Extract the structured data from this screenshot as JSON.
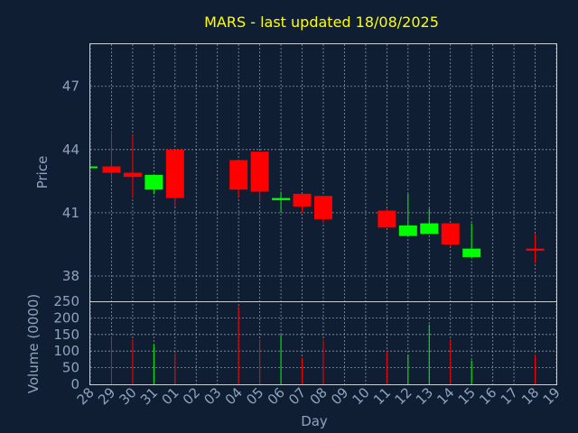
{
  "chart_data": {
    "type": "candlestick",
    "title": "MARS - last updated 18/08/2025",
    "xlabel": "Day",
    "colors": {
      "up": "#00ff00",
      "down": "#ff0000",
      "background": "#0f1e32",
      "title": "#ffff00",
      "axis_text": "#8fa3bf"
    },
    "x_ticks": [
      "28",
      "29",
      "30",
      "31",
      "01",
      "02",
      "03",
      "04",
      "05",
      "06",
      "07",
      "08",
      "09",
      "10",
      "11",
      "12",
      "13",
      "14",
      "15",
      "16",
      "17",
      "18",
      "19"
    ],
    "price_panel": {
      "ylabel": "Price",
      "ylim": [
        36.8,
        49
      ],
      "yticks": [
        38,
        41,
        44,
        47
      ],
      "grid": true
    },
    "volume_panel": {
      "ylabel": "Volume (0000)",
      "ylim": [
        0,
        250
      ],
      "yticks": [
        0,
        50,
        100,
        150,
        200,
        250
      ],
      "grid": true
    },
    "candles": [
      {
        "day": "28",
        "open": 43.2,
        "high": 43.2,
        "low": 43.2,
        "close": 43.2,
        "volume": 0
      },
      {
        "day": "29",
        "open": 43.2,
        "high": 44.9,
        "low": 42.5,
        "close": 42.9,
        "volume": 145
      },
      {
        "day": "30",
        "open": 42.9,
        "high": 44.7,
        "low": 41.7,
        "close": 42.7,
        "volume": 135
      },
      {
        "day": "31",
        "open": 42.1,
        "high": 42.8,
        "low": 41.9,
        "close": 42.8,
        "volume": 120
      },
      {
        "day": "01",
        "open": 44.0,
        "high": 44.0,
        "low": 41.3,
        "close": 41.7,
        "volume": 92
      },
      {
        "day": "04",
        "open": 43.5,
        "high": 43.5,
        "low": 41.7,
        "close": 42.1,
        "volume": 235
      },
      {
        "day": "05",
        "open": 43.9,
        "high": 43.9,
        "low": 41.5,
        "close": 42.0,
        "volume": 135
      },
      {
        "day": "06",
        "open": 41.6,
        "high": 42.0,
        "low": 41.0,
        "close": 41.7,
        "volume": 150
      },
      {
        "day": "07",
        "open": 41.9,
        "high": 41.9,
        "low": 41.0,
        "close": 41.3,
        "volume": 80
      },
      {
        "day": "08",
        "open": 41.8,
        "high": 41.8,
        "low": 40.5,
        "close": 40.7,
        "volume": 135
      },
      {
        "day": "11",
        "open": 41.1,
        "high": 41.2,
        "low": 40.3,
        "close": 40.3,
        "volume": 100
      },
      {
        "day": "12",
        "open": 39.9,
        "high": 41.9,
        "low": 39.9,
        "close": 40.4,
        "volume": 90
      },
      {
        "day": "13",
        "open": 40.0,
        "high": 41.2,
        "low": 40.0,
        "close": 40.5,
        "volume": 180
      },
      {
        "day": "14",
        "open": 40.5,
        "high": 40.5,
        "low": 39.4,
        "close": 39.5,
        "volume": 135
      },
      {
        "day": "15",
        "open": 38.9,
        "high": 40.5,
        "low": 38.9,
        "close": 39.3,
        "volume": 72
      },
      {
        "day": "18",
        "open": 39.3,
        "high": 40.0,
        "low": 38.6,
        "close": 39.2,
        "volume": 90
      }
    ]
  }
}
